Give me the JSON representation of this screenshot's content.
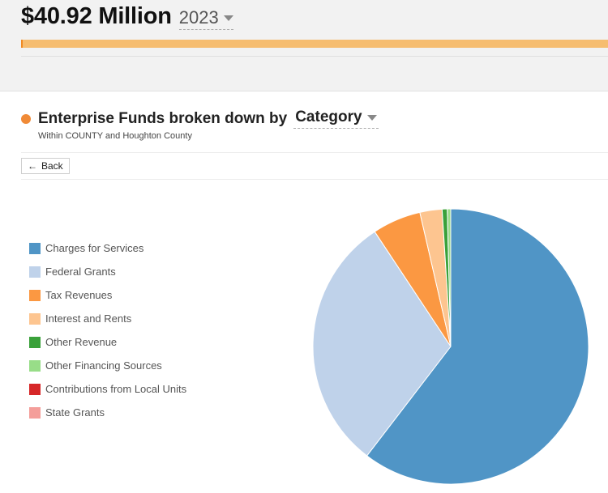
{
  "header": {
    "amount": "$40.92 Million",
    "year": "2023",
    "budget_fill_fraction": 1.0
  },
  "section": {
    "title": "Enterprise Funds broken down by",
    "dimension": "Category",
    "subtitle": "Within COUNTY and Houghton County",
    "back_label": "Back"
  },
  "icons": {
    "legend_dot": "orange-dot-icon",
    "dropdown": "chevron-down-icon",
    "back": "arrow-left-icon"
  },
  "colors": {
    "accent_orange": "#f08a36",
    "bar_fill": "#f6bd70"
  },
  "chart_data": {
    "type": "pie",
    "title": "",
    "legend_position": "left",
    "series": [
      {
        "name": "Charges for Services",
        "value": 60.4,
        "color": "#5095c6"
      },
      {
        "name": "Federal Grants",
        "value": 30.3,
        "color": "#bfd2ea"
      },
      {
        "name": "Tax Revenues",
        "value": 5.7,
        "color": "#fb9842"
      },
      {
        "name": "Interest and Rents",
        "value": 2.6,
        "color": "#fdc590"
      },
      {
        "name": "Other Revenue",
        "value": 0.6,
        "color": "#3aa13a"
      },
      {
        "name": "Other Financing Sources",
        "value": 0.4,
        "color": "#98dd88"
      },
      {
        "name": "Contributions from Local Units",
        "value": 0.0,
        "color": "#d62728"
      },
      {
        "name": "State Grants",
        "value": 0.0,
        "color": "#f49e9a"
      }
    ]
  }
}
